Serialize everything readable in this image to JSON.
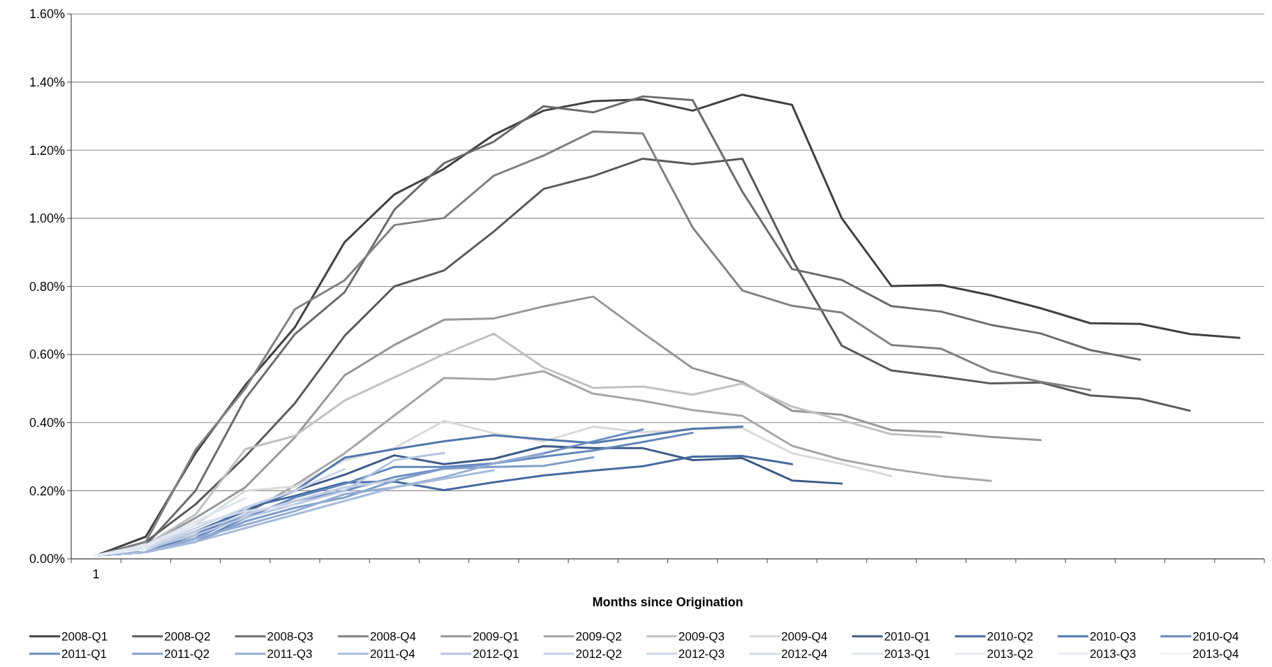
{
  "chart_data": {
    "type": "line",
    "xlabel": "Months since Origination",
    "categories": [
      "1",
      null,
      null,
      null,
      null,
      null,
      null,
      null,
      null,
      null,
      null,
      null,
      null,
      null,
      null,
      null,
      null,
      null,
      null,
      null,
      null,
      null,
      null,
      null
    ],
    "ylim": [
      0,
      1.6
    ],
    "yticks": [
      {
        "value": 0,
        "label": "0.00%"
      },
      {
        "value": 0.2,
        "label": "0.20%"
      },
      {
        "value": 0.4,
        "label": "0.40%"
      },
      {
        "value": 0.6,
        "label": "0.60%"
      },
      {
        "value": 0.8,
        "label": "0.80%"
      },
      {
        "value": 1.0,
        "label": "1.00%"
      },
      {
        "value": 1.2,
        "label": "1.20%"
      },
      {
        "value": 1.4,
        "label": "1.40%"
      },
      {
        "value": 1.6,
        "label": "1.60%"
      }
    ],
    "grid": "y",
    "legend": "bottom",
    "marker": "none",
    "line_style": "solid",
    "series": [
      {
        "name": "2008-Q1",
        "color": "#404040",
        "values": [
          0.01,
          0.065,
          0.31,
          0.51,
          0.68,
          0.93,
          1.07,
          1.145,
          1.245,
          1.316,
          1.344,
          1.349,
          1.316,
          1.363,
          1.333,
          1.0,
          0.801,
          0.804,
          0.774,
          0.736,
          0.692,
          0.69,
          0.66,
          0.649
        ]
      },
      {
        "name": "2008-Q2",
        "color": "#595959",
        "values": [
          0.01,
          0.05,
          0.16,
          0.3,
          0.457,
          0.655,
          0.8,
          0.847,
          0.961,
          1.086,
          1.124,
          1.175,
          1.159,
          1.175,
          0.88,
          0.626,
          0.553,
          0.535,
          0.515,
          0.518,
          0.48,
          0.47,
          0.435,
          null
        ]
      },
      {
        "name": "2008-Q3",
        "color": "#6b6b6b",
        "values": [
          0.01,
          0.04,
          0.2,
          0.47,
          0.66,
          0.783,
          1.025,
          1.162,
          1.225,
          1.329,
          1.311,
          1.358,
          1.347,
          1.078,
          0.851,
          0.819,
          0.742,
          0.726,
          0.687,
          0.662,
          0.613,
          0.585,
          null,
          null
        ]
      },
      {
        "name": "2008-Q4",
        "color": "#808080",
        "values": [
          0.01,
          0.05,
          0.32,
          0.5,
          0.733,
          0.818,
          0.98,
          1.001,
          1.125,
          1.184,
          1.255,
          1.249,
          0.973,
          0.788,
          0.743,
          0.723,
          0.628,
          0.617,
          0.551,
          0.52,
          0.496,
          null,
          null,
          null
        ]
      },
      {
        "name": "2009-Q1",
        "color": "#969696",
        "values": [
          0.01,
          0.04,
          0.12,
          0.21,
          0.357,
          0.539,
          0.628,
          0.702,
          0.706,
          0.741,
          0.77,
          0.663,
          0.56,
          0.519,
          0.435,
          0.423,
          0.378,
          0.372,
          0.358,
          0.349,
          null,
          null,
          null,
          null
        ]
      },
      {
        "name": "2009-Q2",
        "color": "#a6a6a6",
        "values": [
          0.01,
          0.03,
          0.07,
          0.13,
          0.216,
          0.31,
          0.421,
          0.531,
          0.527,
          0.551,
          0.485,
          0.464,
          0.437,
          0.42,
          0.332,
          0.291,
          0.264,
          0.243,
          0.229,
          null,
          null,
          null,
          null,
          null
        ]
      },
      {
        "name": "2009-Q3",
        "color": "#c0c0c0",
        "values": [
          0.01,
          0.04,
          0.13,
          0.322,
          0.361,
          0.465,
          0.533,
          0.601,
          0.661,
          0.562,
          0.502,
          0.506,
          0.482,
          0.515,
          0.447,
          0.407,
          0.366,
          0.358,
          null,
          null,
          null,
          null,
          null,
          null
        ]
      },
      {
        "name": "2009-Q4",
        "color": "#d9d9d9",
        "values": [
          0.01,
          0.03,
          0.1,
          0.2,
          0.212,
          0.29,
          0.325,
          0.405,
          0.369,
          0.345,
          0.388,
          0.372,
          0.38,
          0.384,
          0.31,
          0.279,
          0.243,
          null,
          null,
          null,
          null,
          null,
          null,
          null
        ]
      },
      {
        "name": "2010-Q1",
        "color": "#3b5a86",
        "values": [
          0.01,
          0.03,
          0.08,
          0.14,
          0.2,
          0.247,
          0.304,
          0.278,
          0.294,
          0.331,
          0.325,
          0.325,
          0.29,
          0.296,
          0.23,
          0.221,
          null,
          null,
          null,
          null,
          null,
          null,
          null,
          null
        ]
      },
      {
        "name": "2010-Q2",
        "color": "#446aa0",
        "values": [
          0.01,
          0.02,
          0.06,
          0.15,
          0.185,
          0.224,
          0.227,
          0.202,
          0.225,
          0.245,
          0.259,
          0.272,
          0.3,
          0.302,
          0.278,
          null,
          null,
          null,
          null,
          null,
          null,
          null,
          null,
          null
        ]
      },
      {
        "name": "2010-Q3",
        "color": "#4f77ad",
        "values": [
          0.01,
          0.02,
          0.07,
          0.15,
          0.2,
          0.297,
          0.322,
          0.345,
          0.363,
          0.351,
          0.34,
          0.361,
          0.382,
          0.388,
          null,
          null,
          null,
          null,
          null,
          null,
          null,
          null,
          null,
          null
        ]
      },
      {
        "name": "2010-Q4",
        "color": "#6387bb",
        "values": [
          0.01,
          0.02,
          0.05,
          0.12,
          0.18,
          0.22,
          0.27,
          0.27,
          0.28,
          0.3,
          0.318,
          0.343,
          0.37,
          null,
          null,
          null,
          null,
          null,
          null,
          null,
          null,
          null,
          null,
          null
        ]
      },
      {
        "name": "2011-Q1",
        "color": "#6a8cc0",
        "values": [
          0.01,
          0.02,
          0.06,
          0.13,
          0.17,
          0.2,
          0.24,
          0.265,
          0.28,
          0.31,
          0.345,
          0.38,
          null,
          null,
          null,
          null,
          null,
          null,
          null,
          null,
          null,
          null,
          null,
          null
        ]
      },
      {
        "name": "2011-Q2",
        "color": "#7f9cc9",
        "values": [
          0.01,
          0.02,
          0.05,
          0.11,
          0.15,
          0.18,
          0.23,
          0.265,
          0.27,
          0.273,
          0.298,
          null,
          null,
          null,
          null,
          null,
          null,
          null,
          null,
          null,
          null,
          null,
          null,
          null
        ]
      },
      {
        "name": "2011-Q3",
        "color": "#93acd3",
        "values": [
          0.01,
          0.02,
          0.06,
          0.1,
          0.14,
          0.19,
          0.21,
          0.24,
          0.28,
          0.308,
          null,
          null,
          null,
          null,
          null,
          null,
          null,
          null,
          null,
          null,
          null,
          null,
          null,
          null
        ]
      },
      {
        "name": "2011-Q4",
        "color": "#a5badb",
        "values": [
          0.01,
          0.02,
          0.05,
          0.09,
          0.13,
          0.17,
          0.21,
          0.235,
          0.26,
          null,
          null,
          null,
          null,
          null,
          null,
          null,
          null,
          null,
          null,
          null,
          null,
          null,
          null,
          null
        ]
      },
      {
        "name": "2012-Q1",
        "color": "#b3c4e0",
        "values": [
          0.01,
          0.03,
          0.07,
          0.12,
          0.16,
          0.2,
          0.29,
          0.311,
          null,
          null,
          null,
          null,
          null,
          null,
          null,
          null,
          null,
          null,
          null,
          null,
          null,
          null,
          null,
          null
        ]
      },
      {
        "name": "2012-Q2",
        "color": "#bfcde5",
        "values": [
          0.01,
          0.03,
          0.08,
          0.13,
          0.17,
          0.21,
          0.231,
          null,
          null,
          null,
          null,
          null,
          null,
          null,
          null,
          null,
          null,
          null,
          null,
          null,
          null,
          null,
          null,
          null
        ]
      },
      {
        "name": "2012-Q3",
        "color": "#cad5ea",
        "values": [
          0.01,
          0.03,
          0.09,
          0.15,
          0.2,
          0.264,
          null,
          null,
          null,
          null,
          null,
          null,
          null,
          null,
          null,
          null,
          null,
          null,
          null,
          null,
          null,
          null,
          null,
          null
        ]
      },
      {
        "name": "2012-Q4",
        "color": "#d3dcee",
        "values": [
          0.01,
          0.03,
          0.1,
          0.14,
          0.16,
          null,
          null,
          null,
          null,
          null,
          null,
          null,
          null,
          null,
          null,
          null,
          null,
          null,
          null,
          null,
          null,
          null,
          null,
          null
        ]
      },
      {
        "name": "2013-Q1",
        "color": "#dde4f1",
        "values": [
          0.01,
          0.04,
          0.11,
          0.178,
          null,
          null,
          null,
          null,
          null,
          null,
          null,
          null,
          null,
          null,
          null,
          null,
          null,
          null,
          null,
          null,
          null,
          null,
          null,
          null
        ]
      },
      {
        "name": "2013-Q2",
        "color": "#e3e8f3",
        "values": [
          0.01,
          0.04,
          0.1,
          null,
          null,
          null,
          null,
          null,
          null,
          null,
          null,
          null,
          null,
          null,
          null,
          null,
          null,
          null,
          null,
          null,
          null,
          null,
          null,
          null
        ]
      },
      {
        "name": "2013-Q3",
        "color": "#e8ecf5",
        "values": [
          0.01,
          0.03,
          null,
          null,
          null,
          null,
          null,
          null,
          null,
          null,
          null,
          null,
          null,
          null,
          null,
          null,
          null,
          null,
          null,
          null,
          null,
          null,
          null,
          null
        ]
      },
      {
        "name": "2013-Q4",
        "color": "#eef1f8",
        "marker": "circle",
        "values": [
          0.01,
          null,
          null,
          null,
          null,
          null,
          null,
          null,
          null,
          null,
          null,
          null,
          null,
          null,
          null,
          null,
          null,
          null,
          null,
          null,
          null,
          null,
          null,
          null
        ]
      }
    ]
  }
}
